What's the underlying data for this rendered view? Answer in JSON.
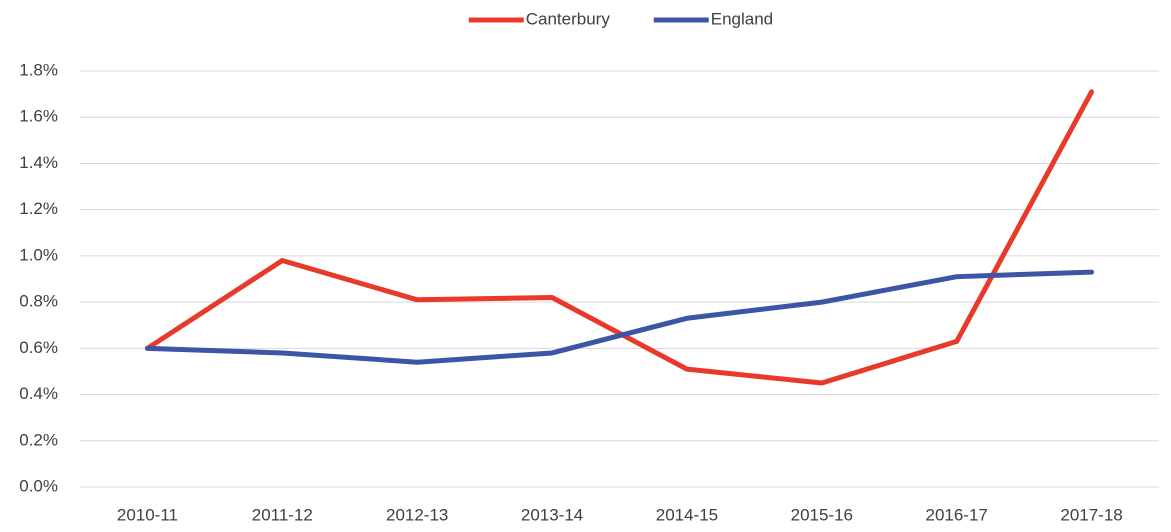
{
  "chart_data": {
    "type": "line",
    "categories": [
      "2010-11",
      "2011-12",
      "2012-13",
      "2013-14",
      "2014-15",
      "2015-16",
      "2016-17",
      "2017-18"
    ],
    "series": [
      {
        "name": "Canterbury",
        "color": "#e8392b",
        "values": [
          0.6,
          0.98,
          0.81,
          0.82,
          0.51,
          0.45,
          0.63,
          1.71
        ]
      },
      {
        "name": "England",
        "color": "#3c55a5",
        "values": [
          0.6,
          0.58,
          0.54,
          0.58,
          0.73,
          0.8,
          0.91,
          0.93
        ]
      }
    ],
    "ylim": [
      0,
      1.8
    ],
    "yticks": [
      {
        "value": 0,
        "label": "0.0%"
      },
      {
        "value": 0.2,
        "label": "0.2%"
      },
      {
        "value": 0.4,
        "label": "0.4%"
      },
      {
        "value": 0.6,
        "label": "0.6%"
      },
      {
        "value": 0.8,
        "label": "0.8%"
      },
      {
        "value": 1.0,
        "label": "1.0%"
      },
      {
        "value": 1.2,
        "label": "1.2%"
      },
      {
        "value": 1.4,
        "label": "1.4%"
      },
      {
        "value": 1.6,
        "label": "1.6%"
      },
      {
        "value": 1.8,
        "label": "1.8%"
      }
    ],
    "grid": true,
    "legend": "top"
  }
}
